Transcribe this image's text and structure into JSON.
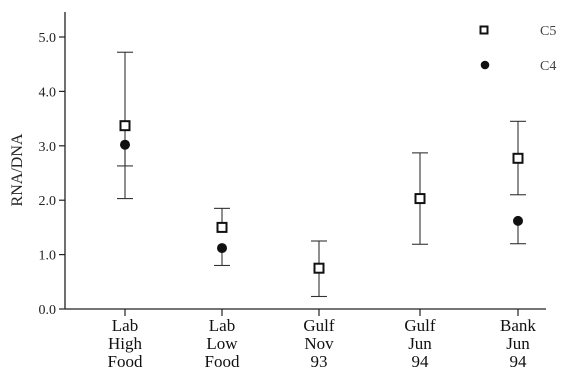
{
  "chart_data": {
    "type": "scatter",
    "categories": [
      [
        "Lab",
        "High",
        "Food"
      ],
      [
        "Lab",
        "Low",
        "Food"
      ],
      [
        "Gulf",
        "Nov",
        "93"
      ],
      [
        "Gulf",
        "Jun",
        "94"
      ],
      [
        "Bank",
        "Jun",
        "94"
      ]
    ],
    "ylabel": "RNA/DNA",
    "ylim": [
      0,
      5.4
    ],
    "yticks": [
      0,
      1,
      2,
      3,
      4,
      5
    ],
    "ytick_labels": [
      "0.0",
      "1.0",
      "2.0",
      "3.0",
      "4.0",
      "5.0"
    ],
    "grid": false,
    "legend_position": "top-right",
    "series": [
      {
        "name": "C5",
        "marker": "open-square",
        "values": [
          3.37,
          1.5,
          0.75,
          2.03,
          2.77
        ],
        "err_high": [
          4.72,
          1.85,
          1.25,
          2.87,
          3.45
        ],
        "err_low": [
          2.03,
          null,
          0.23,
          1.19,
          2.1
        ]
      },
      {
        "name": "C4",
        "marker": "filled-circle",
        "values": [
          3.02,
          1.12,
          null,
          null,
          1.62
        ],
        "err_high": [
          null,
          null,
          null,
          null,
          null
        ],
        "err_low": [
          2.63,
          0.8,
          null,
          null,
          1.2
        ]
      }
    ]
  }
}
